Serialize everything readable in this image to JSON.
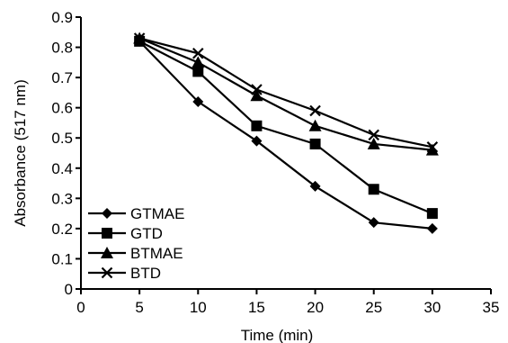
{
  "chart_data": {
    "type": "line",
    "title": "",
    "xlabel": "Time (min)",
    "ylabel": "Absorbance (517 nm)",
    "xlim": [
      0,
      35
    ],
    "ylim": [
      0,
      0.9
    ],
    "xticks": [
      "0",
      "5",
      "10",
      "15",
      "20",
      "25",
      "30",
      "35"
    ],
    "yticks": [
      "0",
      "0.1",
      "0.2",
      "0.3",
      "0.4",
      "0.5",
      "0.6",
      "0.7",
      "0.8",
      "0.9"
    ],
    "grid": false,
    "legend_position": "bottom-left",
    "x": [
      5,
      10,
      15,
      20,
      25,
      30
    ],
    "series": [
      {
        "name": "GTMAE",
        "marker": "diamond",
        "values": [
          0.82,
          0.62,
          0.49,
          0.34,
          0.22,
          0.2
        ]
      },
      {
        "name": "GTD",
        "marker": "square",
        "values": [
          0.82,
          0.72,
          0.54,
          0.48,
          0.33,
          0.25
        ]
      },
      {
        "name": "BTMAE",
        "marker": "triangle",
        "values": [
          0.83,
          0.75,
          0.64,
          0.54,
          0.48,
          0.46
        ]
      },
      {
        "name": "BTD",
        "marker": "x",
        "values": [
          0.83,
          0.78,
          0.66,
          0.59,
          0.51,
          0.47
        ]
      }
    ],
    "colors": {
      "line": "#000000",
      "marker": "#000000"
    }
  }
}
